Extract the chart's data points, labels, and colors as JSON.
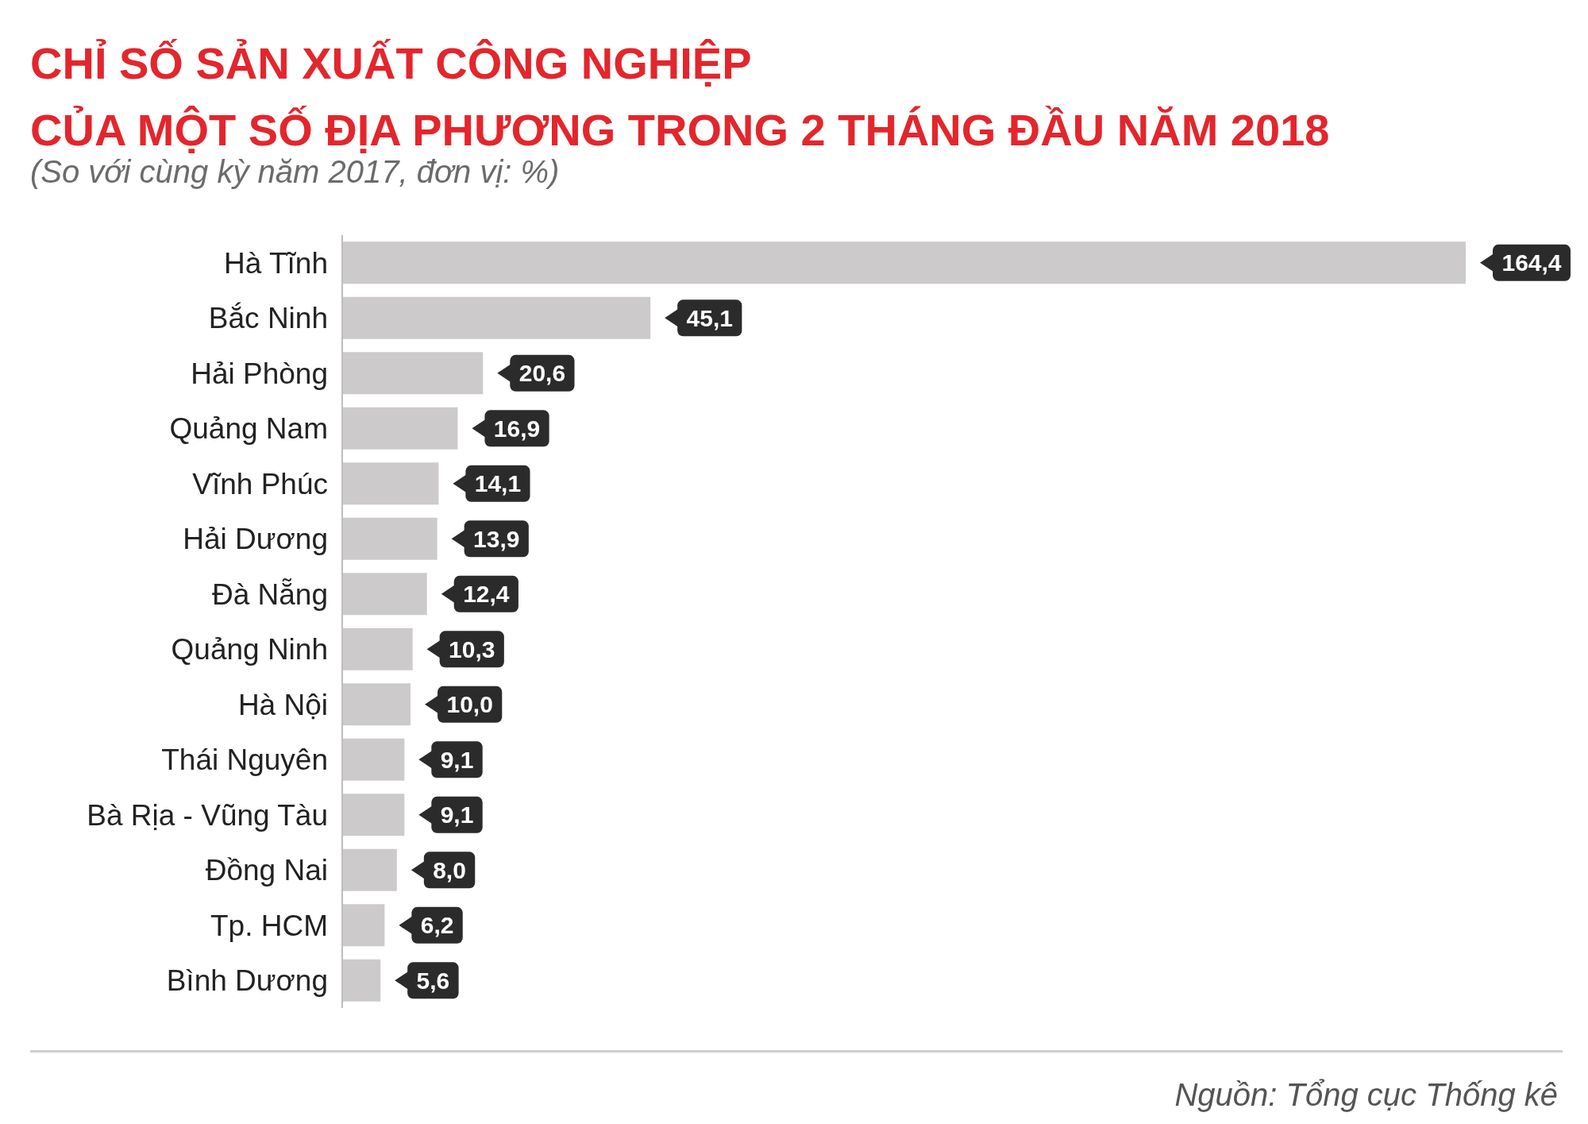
{
  "chart_data": {
    "type": "bar",
    "orientation": "horizontal",
    "title": "CHỈ SỐ SẢN XUẤT CÔNG NGHIỆP\nCỦA MỘT SỐ ĐỊA PHƯƠNG TRONG 2 THÁNG ĐẦU NĂM 2018",
    "subtitle": "(So với cùng kỳ năm 2017, đơn vị: %)",
    "categories": [
      "Hà Tĩnh",
      "Bắc Ninh",
      "Hải Phòng",
      "Quảng Nam",
      "Vĩnh Phúc",
      "Hải Dương",
      "Đà Nẵng",
      "Quảng Ninh",
      "Hà Nội",
      "Thái Nguyên",
      "Bà Rịa - Vũng Tàu",
      "Đồng Nai",
      "Tp. HCM",
      "Bình Dương"
    ],
    "values": [
      164.4,
      45.1,
      20.6,
      16.9,
      14.1,
      13.9,
      12.4,
      10.3,
      10.0,
      9.1,
      9.1,
      8.0,
      6.2,
      5.6
    ],
    "value_labels": [
      "164,4",
      "45,1",
      "20,6",
      "16,9",
      "14,1",
      "13,9",
      "12,4",
      "10,3",
      "10,0",
      "9,1",
      "9,1",
      "8,0",
      "6,2",
      "5,6"
    ],
    "color": "#cccacb",
    "tick_labels": "y",
    "annotations": [
      "Nguồn: Tổng cục Thống kê"
    ]
  }
}
